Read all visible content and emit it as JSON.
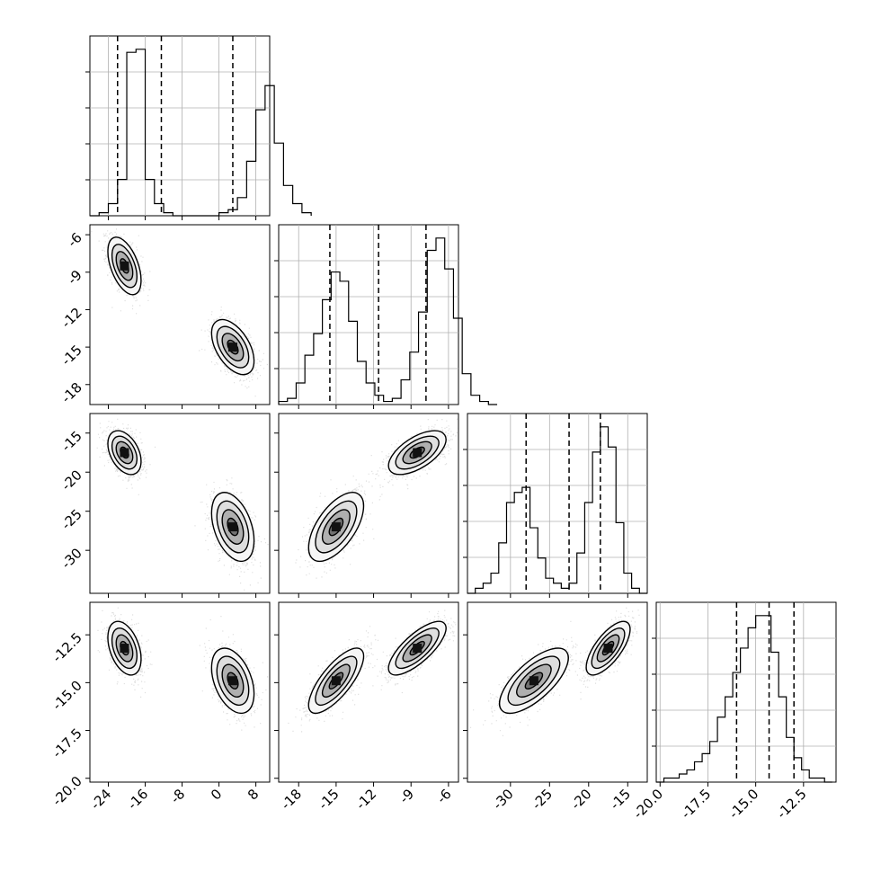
{
  "chart_data": {
    "type": "corner",
    "grid": true,
    "parameters": [
      {
        "index": 0,
        "range": [
          -28,
          11
        ],
        "ticks": [
          "-24",
          "-16",
          "-8",
          "0",
          "8"
        ],
        "tick_values": [
          -24,
          -16,
          -8,
          0,
          8
        ],
        "quantiles": [
          -22,
          -12.5,
          3
        ]
      },
      {
        "index": 1,
        "range": [
          -19.6,
          -5.2
        ],
        "ticks": [
          "-18",
          "-15",
          "-12",
          "-9",
          "-6"
        ],
        "tick_values": [
          -18,
          -15,
          -12,
          -9,
          -6
        ],
        "quantiles": [
          -15.5,
          -11.6,
          -7.8
        ]
      },
      {
        "index": 2,
        "range": [
          -35.5,
          -12.5
        ],
        "ticks": [
          "-30",
          "-25",
          "-20",
          "-15"
        ],
        "tick_values": [
          -30,
          -25,
          -20,
          -15
        ],
        "quantiles": [
          -28,
          -22.5,
          -18.5
        ]
      },
      {
        "index": 3,
        "range": [
          -20.2,
          -10.8
        ],
        "ticks": [
          "-20.0",
          "-17.5",
          "-15.0",
          "-12.5"
        ],
        "tick_values": [
          -20.0,
          -17.5,
          -15.0,
          -12.5
        ],
        "quantiles": [
          -16.0,
          -14.3,
          -13.0
        ]
      }
    ],
    "histograms": [
      {
        "param": 0,
        "bin_start": -28,
        "bin_width": 2,
        "counts": [
          0,
          1,
          4,
          12,
          54,
          55,
          12,
          4,
          1,
          0,
          0,
          0,
          0,
          0,
          1,
          2,
          6,
          18,
          35,
          43,
          24,
          10,
          4,
          1
        ]
      },
      {
        "param": 1,
        "bin_start": -19.6,
        "bin_width": 0.7,
        "counts": [
          1,
          2,
          7,
          16,
          23,
          34,
          43,
          40,
          27,
          14,
          7,
          3,
          1,
          2,
          8,
          17,
          30,
          50,
          54,
          44,
          28,
          10,
          3,
          1,
          0
        ]
      },
      {
        "param": 2,
        "bin_start": -35.5,
        "bin_width": 1,
        "counts": [
          0,
          1,
          2,
          4,
          10,
          18,
          20,
          21,
          13,
          7,
          3,
          2,
          1,
          2,
          8,
          18,
          28,
          33,
          29,
          14,
          4,
          1,
          0
        ]
      },
      {
        "param": 3,
        "bin_start": -20.2,
        "bin_width": 0.4,
        "counts": [
          0,
          1,
          1,
          2,
          3,
          5,
          7,
          10,
          16,
          21,
          27,
          33,
          38,
          41,
          41,
          32,
          21,
          11,
          6,
          3,
          1,
          1,
          0
        ]
      }
    ],
    "clusters": [
      {
        "mean": [
          -20.5,
          -8.5,
          -17.5,
          -13.2
        ],
        "std": [
          1.8,
          1.15,
          1.4,
          0.7
        ],
        "weight": 0.5
      },
      {
        "mean": [
          3.0,
          -15.0,
          -27.0,
          -14.9
        ],
        "std": [
          2.3,
          1.1,
          2.2,
          0.85
        ],
        "weight": 0.5
      }
    ],
    "correlations": [
      [
        0,
        1,
        -0.5
      ],
      [
        0,
        2,
        -0.4
      ],
      [
        0,
        3,
        -0.4
      ],
      [
        1,
        2,
        0.6
      ],
      [
        1,
        3,
        0.75
      ],
      [
        2,
        3,
        0.7
      ]
    ]
  }
}
